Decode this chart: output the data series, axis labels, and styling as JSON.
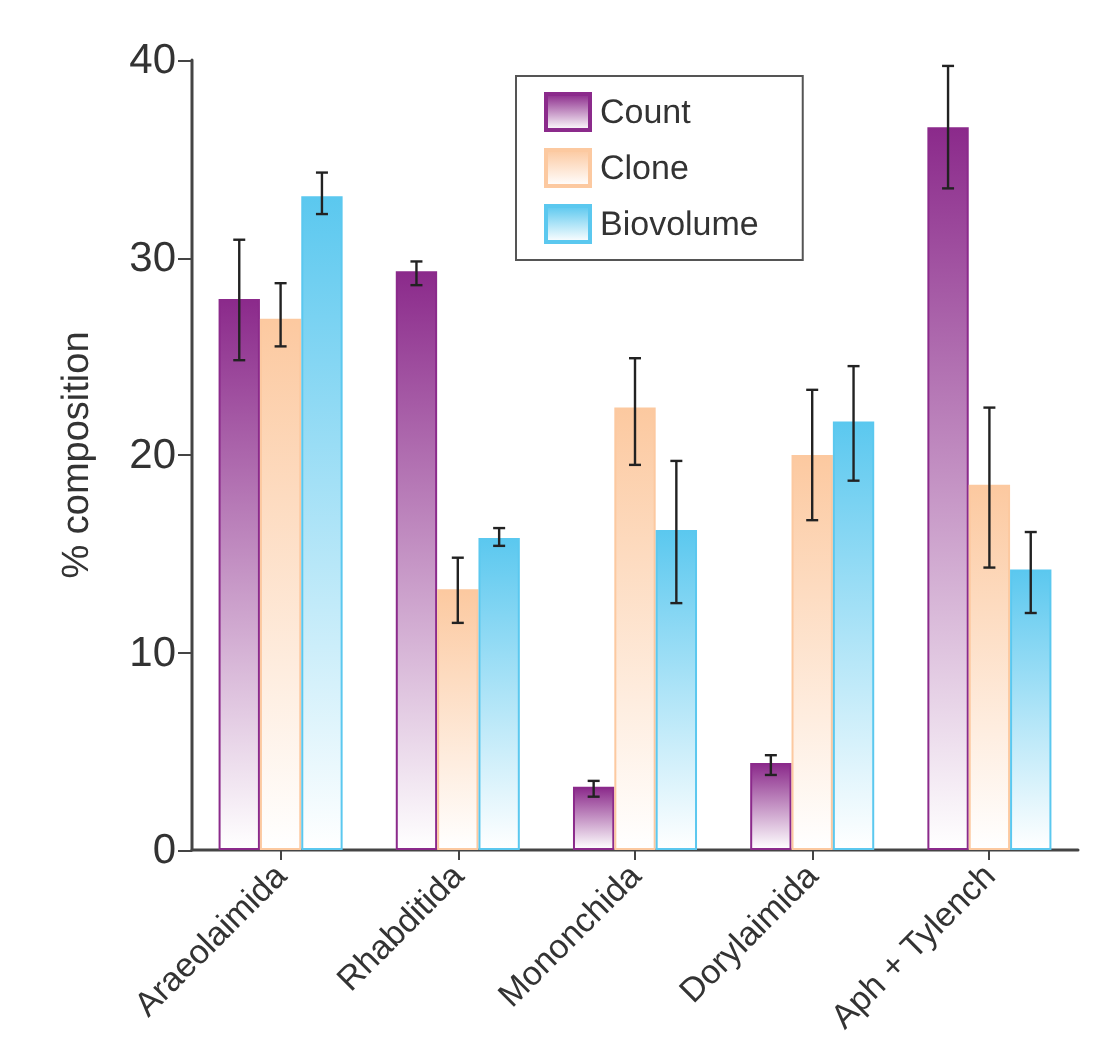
{
  "chart_data": {
    "type": "bar",
    "ylabel": "% composition",
    "categories": [
      "Araeolaimida",
      "Rhabditida",
      "Mononchida",
      "Dorylaimida",
      "Aph + Tylench"
    ],
    "series": [
      {
        "name": "Count",
        "color": "#8b2a8b",
        "values": [
          27.9,
          29.3,
          3.2,
          4.4,
          36.6
        ],
        "errors": [
          [
            24.8,
            30.9
          ],
          [
            28.6,
            29.8
          ],
          [
            2.7,
            3.5
          ],
          [
            3.8,
            4.8
          ],
          [
            33.5,
            39.7
          ]
        ]
      },
      {
        "name": "Clone",
        "color": "#fcc9a0",
        "values": [
          26.9,
          13.2,
          22.4,
          20.0,
          18.5
        ],
        "errors": [
          [
            25.5,
            28.7
          ],
          [
            11.5,
            14.8
          ],
          [
            19.5,
            24.9
          ],
          [
            16.7,
            23.3
          ],
          [
            14.3,
            22.4
          ]
        ]
      },
      {
        "name": "Biovolume",
        "color": "#5bc8ef",
        "values": [
          33.1,
          15.8,
          16.2,
          21.7,
          14.2
        ],
        "errors": [
          [
            32.2,
            34.3
          ],
          [
            15.4,
            16.3
          ],
          [
            12.5,
            19.7
          ],
          [
            18.7,
            24.5
          ],
          [
            12.0,
            16.1
          ]
        ]
      }
    ],
    "ylim": [
      0,
      40
    ],
    "yticks": [
      0,
      10,
      20,
      30,
      40
    ],
    "grid": false,
    "legend": "top right"
  }
}
